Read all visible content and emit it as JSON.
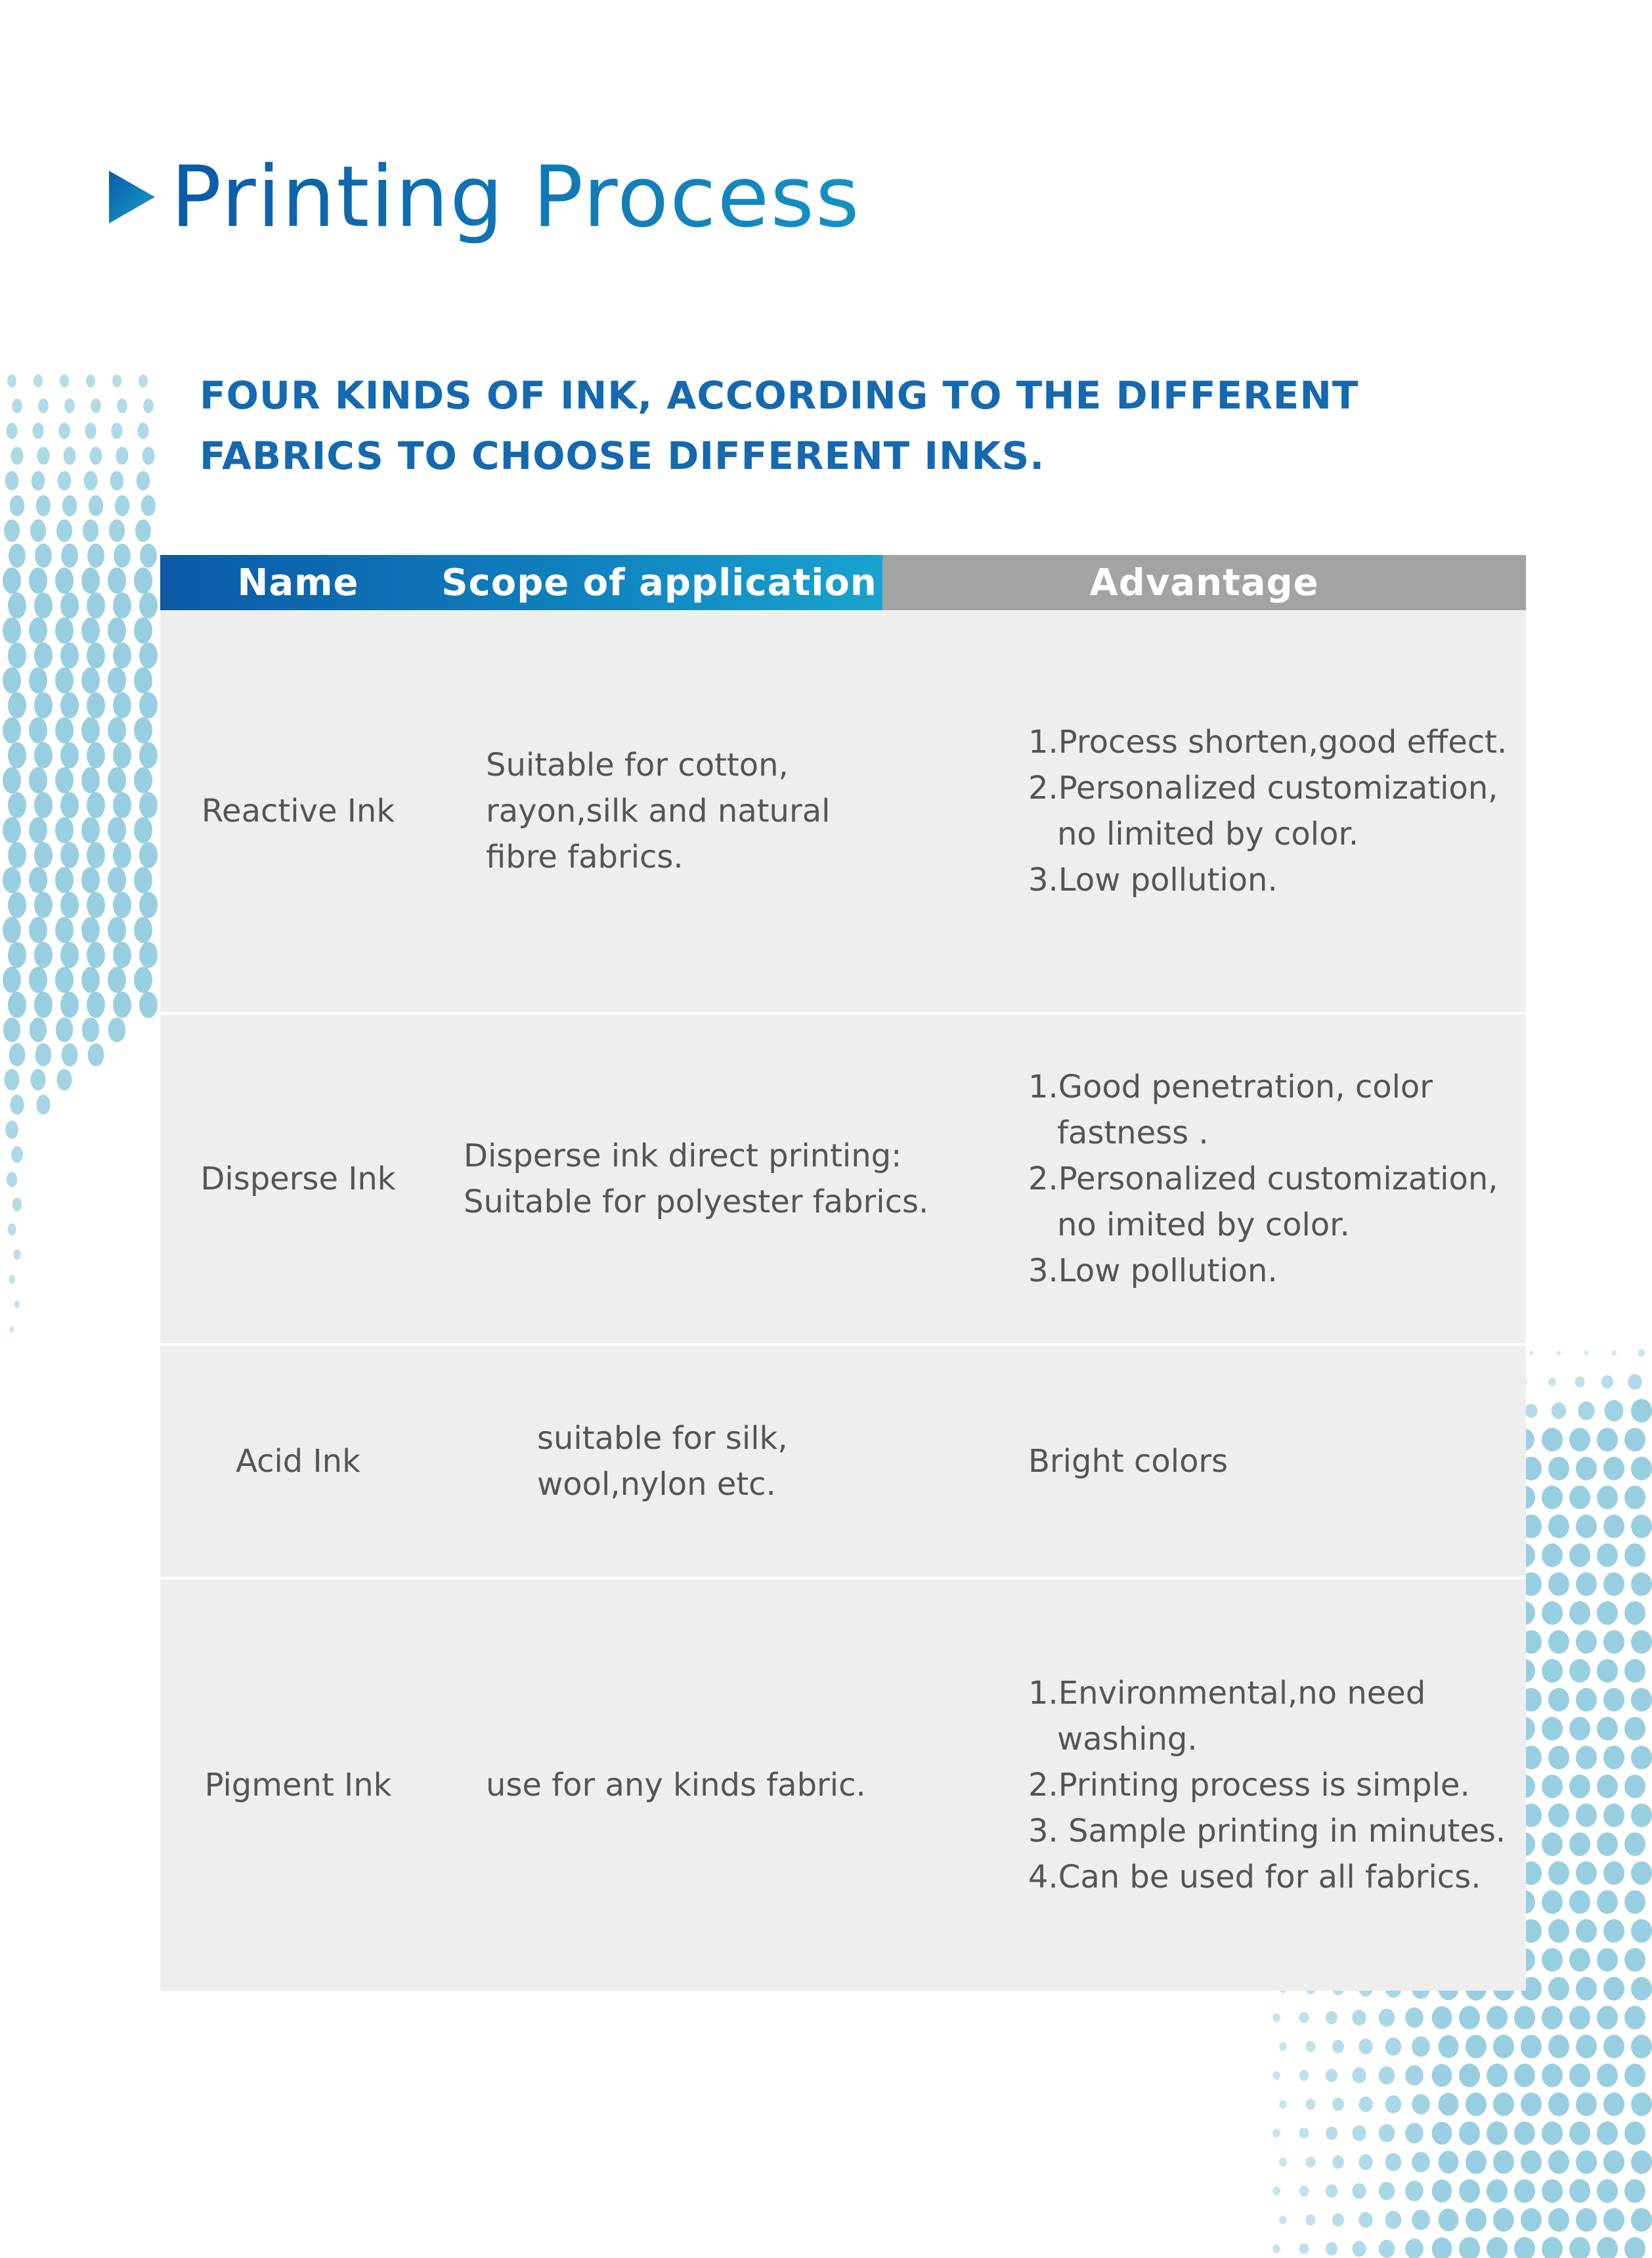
{
  "page": {
    "title": "Printing Process",
    "subtitle_lines": [
      "FOUR KINDS OF INK, ACCORDING TO THE DIFFERENT",
      "FABRICS TO CHOOSE DIFFERENT INKS."
    ]
  },
  "table": {
    "headers": {
      "name": "Name",
      "scope": "Scope of application",
      "advantage": "Advantage"
    },
    "rows": [
      {
        "name": "Reactive Ink",
        "scope": [
          "Suitable for cotton,",
          "rayon,silk and natural",
          "fibre fabrics."
        ],
        "advantage": [
          "1.Process shorten,good effect.",
          "2.Personalized customization,",
          "no limited by color.",
          "3.Low pollution."
        ]
      },
      {
        "name": "Disperse Ink",
        "scope": [
          "Disperse ink direct printing:",
          "Suitable for polyester fabrics."
        ],
        "advantage": [
          "1.Good penetration, color",
          "fastness .",
          "2.Personalized customization,",
          "no imited by color.",
          "3.Low pollution."
        ]
      },
      {
        "name": "Acid Ink",
        "scope": [
          "suitable for silk,",
          "wool,nylon etc."
        ],
        "advantage": [
          "Bright colors"
        ]
      },
      {
        "name": "Pigment Ink",
        "scope": [
          "use for any kinds fabric."
        ],
        "advantage": [
          "1.Environmental,no need",
          "washing.",
          "2.Printing process is simple.",
          "3. Sample printing in minutes.",
          "4.Can be used for all fabrics."
        ]
      }
    ]
  },
  "colors": {
    "title_blue": "#0a5aa8",
    "header_blue": "#0b5aa6",
    "header_gray": "#a3a3a3",
    "row_bg": "#eeeeee",
    "dot_teal": "#7ec3d8"
  }
}
